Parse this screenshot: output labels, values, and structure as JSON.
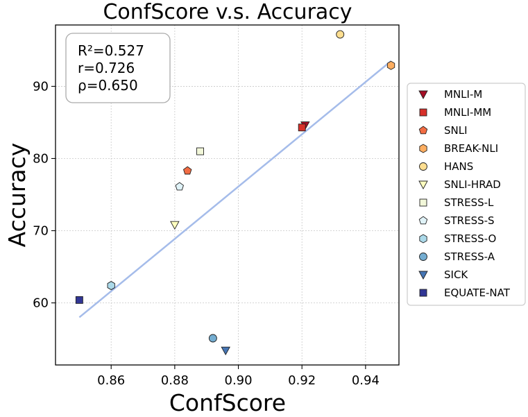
{
  "chart_data": {
    "type": "scatter",
    "title": "ConfScore  v.s.  Accuracy",
    "xlabel": "ConfScore",
    "ylabel": "Accuracy",
    "xlim": [
      0.8425,
      0.9505
    ],
    "ylim": [
      51.4,
      98.5
    ],
    "xticks": [
      0.86,
      0.88,
      0.9,
      0.92,
      0.94
    ],
    "xtick_labels": [
      "0.86",
      "0.88",
      "0.90",
      "0.92",
      "0.94"
    ],
    "yticks": [
      60,
      70,
      80,
      90
    ],
    "ytick_labels": [
      "60",
      "70",
      "80",
      "90"
    ],
    "grid": true,
    "legend_position": "right, outside plot",
    "stats": [
      "R²=0.527",
      "r=0.726",
      "ρ=0.650"
    ],
    "regression_line": {
      "x": [
        0.85,
        0.948
      ],
      "y": [
        58.0,
        93.5
      ],
      "color": "#a5bcea"
    },
    "series": [
      {
        "name": "MNLI-M",
        "x": 0.921,
        "y": 84.6,
        "marker": "triangle-down",
        "color": "#a50f26"
      },
      {
        "name": "MNLI-MM",
        "x": 0.92,
        "y": 84.3,
        "marker": "square",
        "color": "#d7302a"
      },
      {
        "name": "SNLI",
        "x": 0.884,
        "y": 78.3,
        "marker": "pentagon",
        "color": "#f26c43"
      },
      {
        "name": "BREAK-NLI",
        "x": 0.948,
        "y": 92.9,
        "marker": "hexagon",
        "color": "#fdae61"
      },
      {
        "name": "HANS",
        "x": 0.932,
        "y": 97.2,
        "marker": "circle",
        "color": "#fede90"
      },
      {
        "name": "SNLI-HRAD",
        "x": 0.88,
        "y": 70.8,
        "marker": "triangle-down",
        "color": "#ffffbf"
      },
      {
        "name": "STRESS-L",
        "x": 0.888,
        "y": 81.0,
        "marker": "square",
        "color": "#f2f7d9"
      },
      {
        "name": "STRESS-S",
        "x": 0.8815,
        "y": 76.1,
        "marker": "pentagon",
        "color": "#e0f3f8"
      },
      {
        "name": "STRESS-O",
        "x": 0.86,
        "y": 62.4,
        "marker": "hexagon",
        "color": "#abd9e9"
      },
      {
        "name": "STRESS-A",
        "x": 0.892,
        "y": 55.1,
        "marker": "circle",
        "color": "#74add1"
      },
      {
        "name": "SICK",
        "x": 0.896,
        "y": 53.4,
        "marker": "triangle-down",
        "color": "#4575b4"
      },
      {
        "name": "EQUATE-NAT",
        "x": 0.85,
        "y": 60.4,
        "marker": "square",
        "color": "#313695"
      }
    ]
  }
}
